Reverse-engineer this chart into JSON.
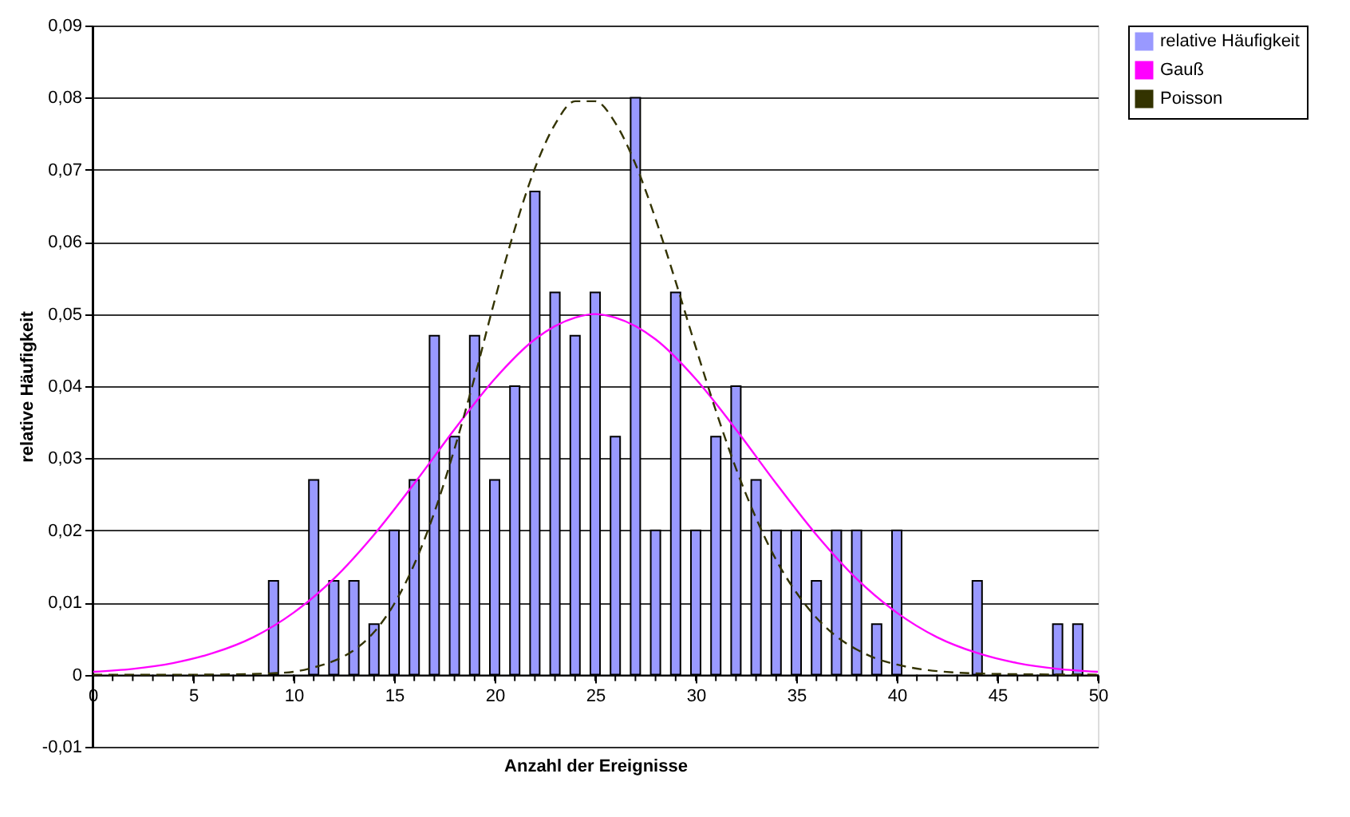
{
  "chart_data": {
    "type": "bar",
    "xlabel": "Anzahl der Ereignisse",
    "ylabel": "relative Häufigkeit",
    "xlim": [
      0,
      50
    ],
    "xticks": [
      0,
      5,
      10,
      15,
      20,
      25,
      30,
      35,
      40,
      45,
      50
    ],
    "ylim": [
      -0.01,
      0.09
    ],
    "yticks": [
      {
        "value": -0.01,
        "label": "-0,01"
      },
      {
        "value": 0,
        "label": "0"
      },
      {
        "value": 0.01,
        "label": "0,01"
      },
      {
        "value": 0.02,
        "label": "0,02"
      },
      {
        "value": 0.03,
        "label": "0,03"
      },
      {
        "value": 0.04,
        "label": "0,04"
      },
      {
        "value": 0.05,
        "label": "0,05"
      },
      {
        "value": 0.06,
        "label": "0,06"
      },
      {
        "value": 0.07,
        "label": "0,07"
      },
      {
        "value": 0.08,
        "label": "0,08"
      },
      {
        "value": 0.09,
        "label": "0,09"
      }
    ],
    "grid": "y",
    "legend": "right",
    "series": [
      {
        "name": "relative Häufigkeit",
        "color": "#9999ff",
        "x": [
          9,
          11,
          12,
          13,
          14,
          15,
          16,
          17,
          18,
          19,
          20,
          21,
          22,
          23,
          24,
          25,
          26,
          27,
          28,
          29,
          30,
          31,
          32,
          33,
          34,
          35,
          36,
          37,
          38,
          39,
          40,
          44,
          48,
          49
        ],
        "values": [
          0.013,
          0.027,
          0.013,
          0.013,
          0.007,
          0.02,
          0.027,
          0.047,
          0.033,
          0.047,
          0.027,
          0.04,
          0.067,
          0.053,
          0.047,
          0.053,
          0.033,
          0.08,
          0.02,
          0.053,
          0.02,
          0.033,
          0.04,
          0.027,
          0.02,
          0.02,
          0.013,
          0.02,
          0.02,
          0.007,
          0.02,
          0.013,
          0.007,
          0.007
        ]
      },
      {
        "name": "Gauß",
        "type": "line",
        "color": "#ff00ff",
        "line_style": "solid",
        "x": [
          0,
          2,
          4,
          6,
          8,
          10,
          12,
          14,
          16,
          18,
          20,
          22,
          24,
          25,
          26,
          28,
          30,
          32,
          34,
          36,
          38,
          40,
          42,
          44,
          46,
          48,
          50
        ],
        "values": [
          0.0004,
          0.0008,
          0.0016,
          0.003,
          0.0052,
          0.0086,
          0.0133,
          0.0194,
          0.0265,
          0.034,
          0.041,
          0.0465,
          0.0495,
          0.05,
          0.0495,
          0.0465,
          0.041,
          0.034,
          0.0265,
          0.0194,
          0.0133,
          0.0086,
          0.0052,
          0.003,
          0.0016,
          0.0008,
          0.0004
        ]
      },
      {
        "name": "Poisson",
        "type": "line",
        "color": "#333300",
        "line_style": "dashed",
        "x": [
          0,
          5,
          8,
          9,
          10,
          11,
          12,
          13,
          14,
          15,
          16,
          17,
          18,
          19,
          20,
          21,
          22,
          23,
          24,
          25,
          26,
          27,
          28,
          29,
          30,
          31,
          32,
          33,
          34,
          35,
          36,
          37,
          38,
          39,
          40,
          42,
          45,
          50
        ],
        "values": [
          0,
          0,
          0.0001,
          0.0002,
          0.0004,
          0.001,
          0.0019,
          0.0034,
          0.0059,
          0.0098,
          0.0153,
          0.0225,
          0.0313,
          0.0412,
          0.0519,
          0.0618,
          0.0702,
          0.0763,
          0.0795,
          0.0795,
          0.0765,
          0.0708,
          0.0632,
          0.0545,
          0.0454,
          0.0366,
          0.0286,
          0.0217,
          0.0159,
          0.0114,
          0.0079,
          0.0053,
          0.0035,
          0.0022,
          0.0014,
          0.0005,
          0.0001,
          0
        ]
      }
    ]
  }
}
